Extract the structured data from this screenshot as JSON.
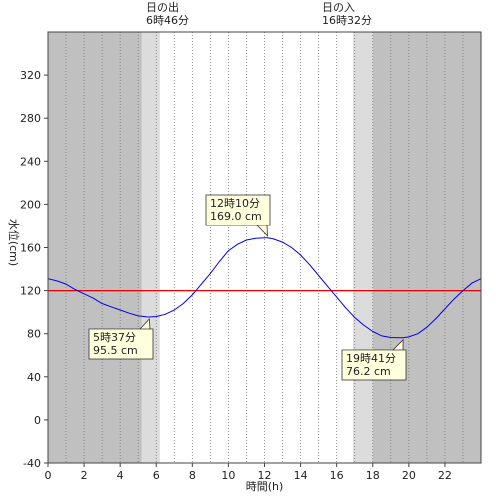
{
  "chart_data": {
    "type": "line",
    "xlabel": "時間(h)",
    "ylabel": "水位(cm)",
    "xlim": [
      0,
      24
    ],
    "ylim": [
      -40,
      360
    ],
    "x_ticks": [
      0,
      2,
      4,
      6,
      8,
      10,
      12,
      14,
      16,
      18,
      20,
      22
    ],
    "y_ticks": [
      -40,
      0,
      40,
      80,
      120,
      160,
      200,
      240,
      280,
      320
    ],
    "grid": "vertical dotted lines every hour",
    "colors": {
      "night": "#c0c0c0",
      "twilight": "#dcdcdc",
      "day": "#ffffff",
      "tide_line": "#0000ee",
      "reference_line": "#ee0000",
      "callout_bg": "#ffffdd"
    },
    "sunrise": {
      "label": "日の出",
      "time": "6時46分"
    },
    "sunset": {
      "label": "日の入",
      "time": "16時32分"
    },
    "shading": {
      "night_before": [
        0,
        5.2
      ],
      "twilight_morning": [
        5.2,
        6.2
      ],
      "day": [
        6.2,
        16.9
      ],
      "twilight_evening": [
        16.9,
        18.0
      ],
      "night_after": [
        18.0,
        24
      ]
    },
    "reference_line": 120,
    "series": [
      {
        "x": [
          0,
          0.5,
          1,
          1.5,
          2,
          2.5,
          3,
          3.5,
          4,
          4.5,
          5,
          5.5,
          5.617,
          6,
          6.5,
          7,
          7.5,
          8,
          8.5,
          9,
          9.5,
          10,
          10.5,
          11,
          11.5,
          12,
          12.167,
          12.5,
          13,
          13.5,
          14,
          14.5,
          15,
          15.5,
          16,
          16.5,
          17,
          17.5,
          18,
          18.5,
          19,
          19.5,
          19.683,
          20,
          20.5,
          21,
          21.5,
          22,
          22.5,
          23,
          23.5,
          24
        ],
        "y": [
          131,
          129,
          126,
          121,
          117,
          113,
          108,
          105,
          102,
          99,
          96.5,
          95.6,
          95.5,
          96,
          98,
          102,
          108,
          116,
          126,
          136,
          147,
          157,
          163,
          167,
          168.5,
          169,
          169.0,
          168,
          165,
          160,
          153,
          144,
          134,
          124,
          114,
          104,
          95,
          88,
          82,
          78,
          76.5,
          76.2,
          76.2,
          77,
          80,
          86,
          94,
          103,
          112,
          120,
          127,
          131
        ]
      }
    ],
    "annotations": [
      {
        "time": "5時37分",
        "value": "95.5 cm",
        "x": 5.617,
        "y": 95.5
      },
      {
        "time": "12時10分",
        "value": "169.0 cm",
        "x": 12.167,
        "y": 169.0
      },
      {
        "time": "19時41分",
        "value": "76.2 cm",
        "x": 19.683,
        "y": 76.2
      }
    ]
  }
}
